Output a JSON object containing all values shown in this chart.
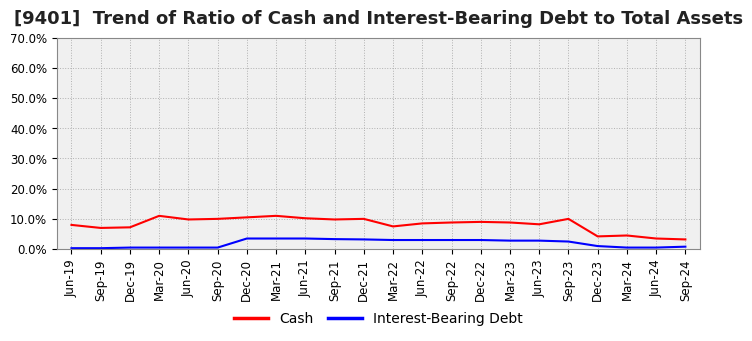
{
  "title": "[9401]  Trend of Ratio of Cash and Interest-Bearing Debt to Total Assets",
  "x_labels": [
    "Jun-19",
    "Sep-19",
    "Dec-19",
    "Mar-20",
    "Jun-20",
    "Sep-20",
    "Dec-20",
    "Mar-21",
    "Jun-21",
    "Sep-21",
    "Dec-21",
    "Mar-22",
    "Jun-22",
    "Sep-22",
    "Dec-22",
    "Mar-23",
    "Jun-23",
    "Sep-23",
    "Dec-23",
    "Mar-24",
    "Jun-24",
    "Sep-24"
  ],
  "cash": [
    8.0,
    7.0,
    7.2,
    11.0,
    9.8,
    10.0,
    10.5,
    11.0,
    10.2,
    9.8,
    10.0,
    7.5,
    8.5,
    8.8,
    9.0,
    8.8,
    8.2,
    10.0,
    4.2,
    4.5,
    3.5,
    3.2
  ],
  "interest_debt": [
    0.3,
    0.3,
    0.5,
    0.5,
    0.5,
    0.5,
    3.5,
    3.5,
    3.5,
    3.3,
    3.2,
    3.0,
    3.0,
    3.0,
    3.0,
    2.8,
    2.8,
    2.5,
    1.0,
    0.5,
    0.5,
    0.8
  ],
  "cash_color": "#ff0000",
  "debt_color": "#0000ff",
  "ylim": [
    0,
    70
  ],
  "yticks": [
    0,
    10,
    20,
    30,
    40,
    50,
    60,
    70
  ],
  "ytick_labels": [
    "0.0%",
    "10.0%",
    "20.0%",
    "30.0%",
    "40.0%",
    "50.0%",
    "60.0%",
    "70.0%"
  ],
  "grid_color": "#aaaaaa",
  "background_color": "#ffffff",
  "plot_bg_color": "#f0f0f0",
  "legend_cash": "Cash",
  "legend_debt": "Interest-Bearing Debt",
  "title_fontsize": 13,
  "axis_fontsize": 8.5,
  "legend_fontsize": 10,
  "line_width": 1.5
}
